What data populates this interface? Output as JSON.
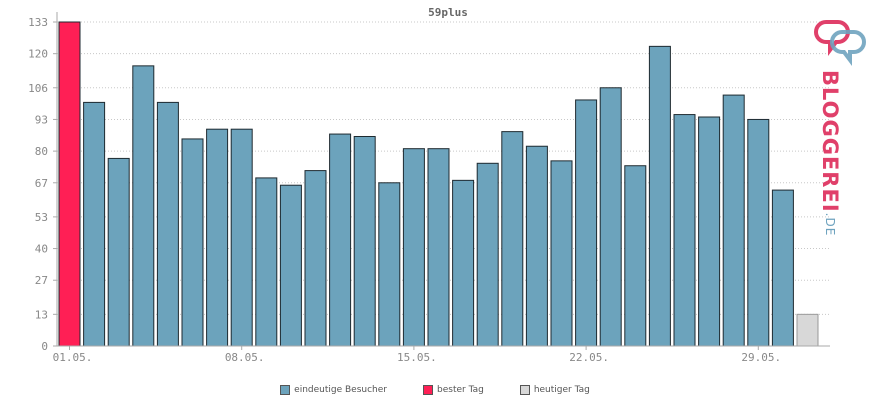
{
  "chart_data": {
    "type": "bar",
    "title": "59plus",
    "yticks": [
      0,
      13,
      27,
      40,
      53,
      67,
      80,
      93,
      106,
      120,
      133
    ],
    "ylim": [
      0,
      133
    ],
    "xtick_labels": [
      {
        "index": 0,
        "label": "01.05."
      },
      {
        "index": 7,
        "label": "08.05."
      },
      {
        "index": 14,
        "label": "15.05."
      },
      {
        "index": 21,
        "label": "22.05."
      },
      {
        "index": 28,
        "label": "29.05."
      }
    ],
    "values": [
      133,
      100,
      77,
      115,
      100,
      85,
      89,
      89,
      69,
      66,
      72,
      87,
      86,
      67,
      81,
      81,
      68,
      75,
      88,
      82,
      76,
      101,
      106,
      74,
      123,
      95,
      94,
      103,
      93,
      64,
      13
    ],
    "bar_kinds": [
      "best",
      "normal",
      "normal",
      "normal",
      "normal",
      "normal",
      "normal",
      "normal",
      "normal",
      "normal",
      "normal",
      "normal",
      "normal",
      "normal",
      "normal",
      "normal",
      "normal",
      "normal",
      "normal",
      "normal",
      "normal",
      "normal",
      "normal",
      "normal",
      "normal",
      "normal",
      "normal",
      "normal",
      "normal",
      "normal",
      "today"
    ],
    "colors": {
      "normal": "#6ca3bc",
      "best": "#ff1f55",
      "today": "#d8d8d8",
      "grid": "#c8c8c8",
      "axis": "#aaaaaa"
    },
    "grid": true,
    "legend_position": "bottom"
  },
  "legend": [
    {
      "label": "eindeutige Besucher",
      "color": "#6ca3bc"
    },
    {
      "label": "bester Tag",
      "color": "#ff1f55"
    },
    {
      "label": "heutiger Tag",
      "color": "#d8d8d8"
    }
  ],
  "logo": {
    "text": "BLOGGEREI",
    "suffix": ".DE"
  }
}
